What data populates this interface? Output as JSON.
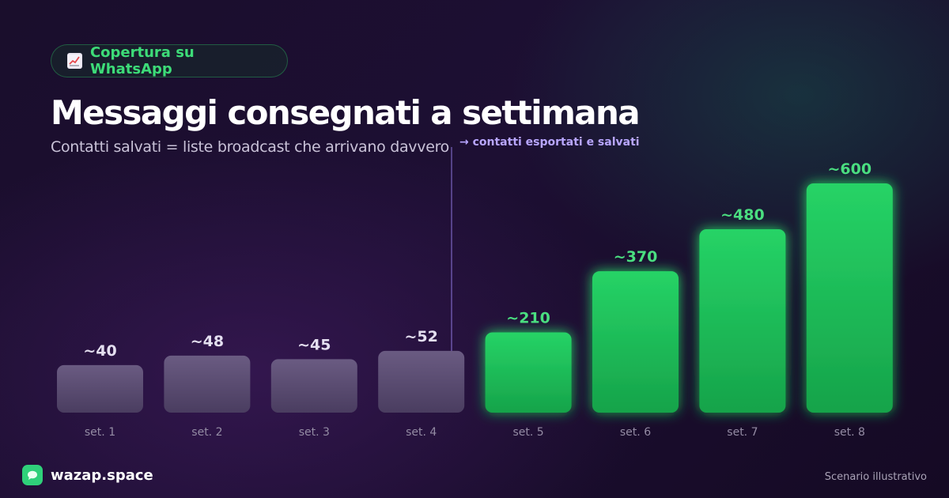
{
  "badge": {
    "icon": "chart-increasing-icon",
    "label": "Copertura su WhatsApp"
  },
  "title": "Messaggi consegnati a settimana",
  "subtitle": "Contatti salvati = liste broadcast che arrivano davvero",
  "annotation": "→ contatti esportati e salvati",
  "brand": {
    "icon": "chat-bubble-icon",
    "name": "wazap.space"
  },
  "footnote": "Scenario illustrativo",
  "colors": {
    "before_bar": "#5a4b72",
    "after_bar": "#22c55e",
    "after_label": "#4ade80",
    "before_label": "#e4dff0",
    "accent": "#b8a6ff"
  },
  "chart_data": {
    "type": "bar",
    "title": "Messaggi consegnati a settimana",
    "xlabel": "",
    "ylabel": "",
    "categories": [
      "set. 1",
      "set. 2",
      "set. 3",
      "set. 4",
      "set. 5",
      "set. 6",
      "set. 7",
      "set. 8"
    ],
    "values": [
      40,
      48,
      45,
      52,
      210,
      370,
      480,
      600
    ],
    "data_labels": [
      "~40",
      "~48",
      "~45",
      "~52",
      "~210",
      "~370",
      "~480",
      "~600"
    ],
    "highlight_from_index": 4,
    "ylim": [
      0,
      600
    ],
    "grid": false,
    "legend": "none"
  }
}
